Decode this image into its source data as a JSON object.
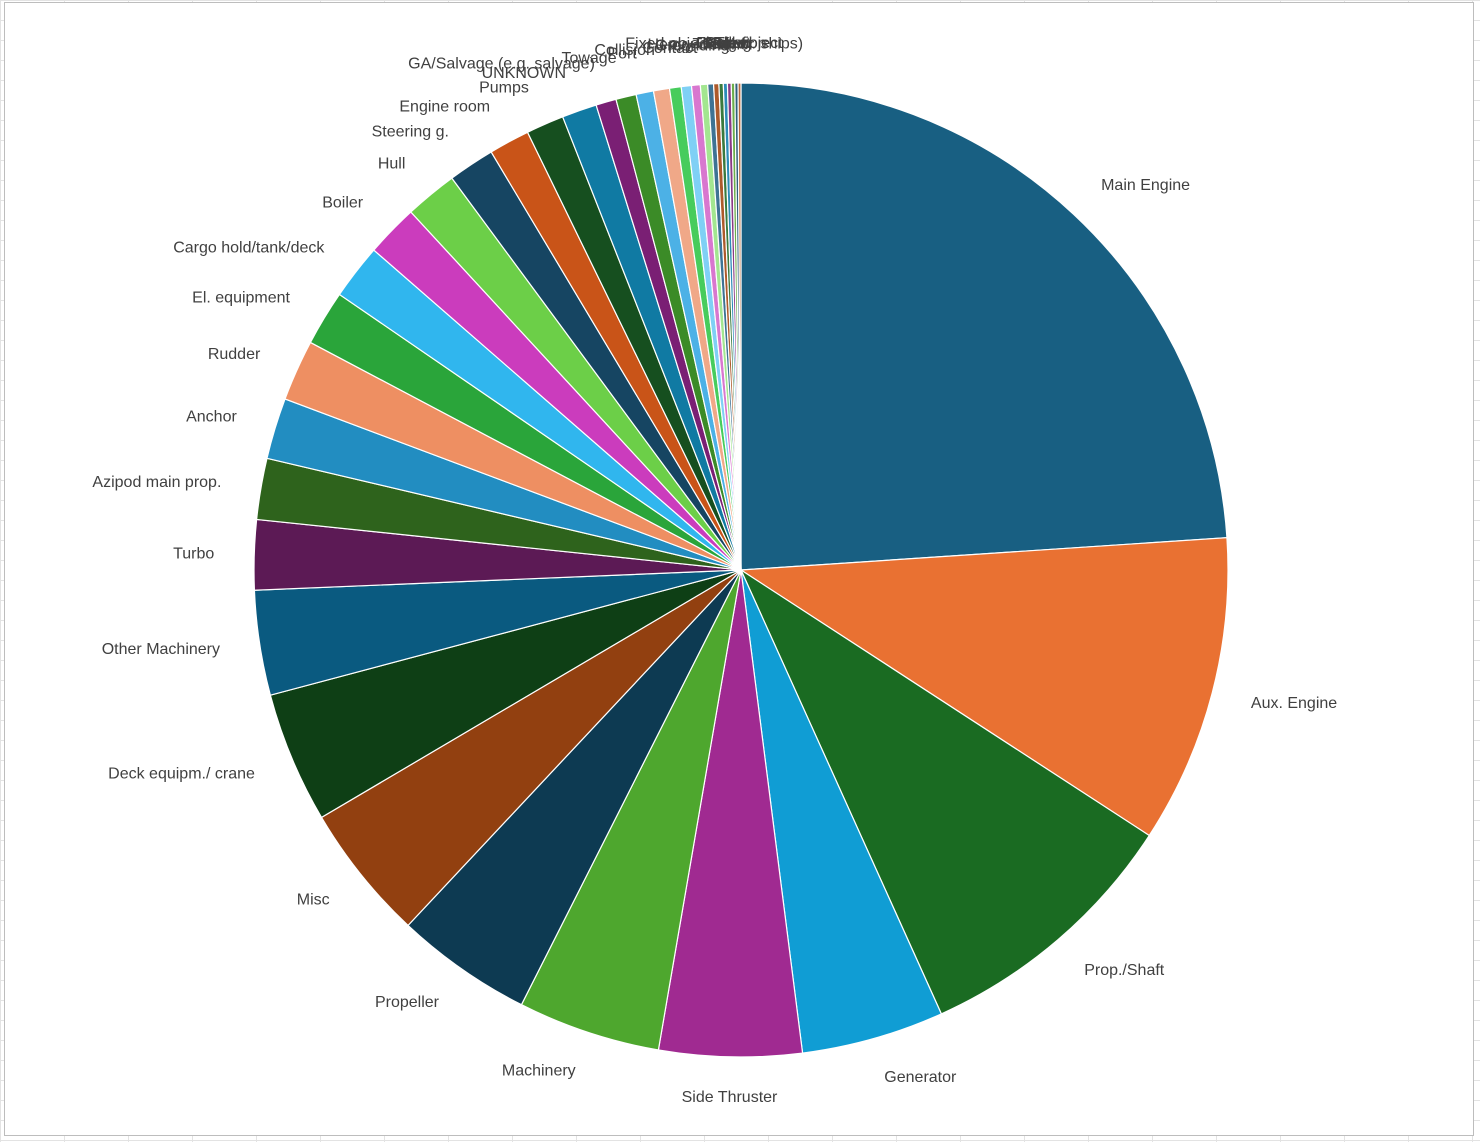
{
  "chart_data": {
    "type": "pie",
    "title": "",
    "legend": "none",
    "slices": [
      {
        "label": "Main Engine",
        "value": 24.8,
        "color": "#185f82"
      },
      {
        "label": "Aux. Engine",
        "value": 10.6,
        "color": "#e97132"
      },
      {
        "label": "Prop./Shaft",
        "value": 9.4,
        "color": "#1a6b22"
      },
      {
        "label": "Generator",
        "value": 4.9,
        "color": "#109dd4"
      },
      {
        "label": "Side Thruster",
        "value": 4.9,
        "color": "#a02a91"
      },
      {
        "label": "Machinery",
        "value": 4.9,
        "color": "#4ea72e"
      },
      {
        "label": "Propeller",
        "value": 4.7,
        "color": "#0d3a52"
      },
      {
        "label": "Misc",
        "value": 4.7,
        "color": "#924010"
      },
      {
        "label": "Deck equipm./ crane",
        "value": 4.5,
        "color": "#0e3f15"
      },
      {
        "label": "Other Machinery",
        "value": 3.6,
        "color": "#0a5a80"
      },
      {
        "label": "Turbo",
        "value": 2.4,
        "color": "#5c1a55"
      },
      {
        "label": "Azipod main prop.",
        "value": 2.1,
        "color": "#2e631c"
      },
      {
        "label": "Anchor",
        "value": 2.1,
        "color": "#228dc1"
      },
      {
        "label": "Rudder",
        "value": 2.1,
        "color": "#ee8f62"
      },
      {
        "label": "El. equipment",
        "value": 1.9,
        "color": "#2aa53a"
      },
      {
        "label": "Cargo hold/tank/deck",
        "value": 1.9,
        "color": "#30b6ee"
      },
      {
        "label": "Boiler",
        "value": 1.8,
        "color": "#cb3cbd"
      },
      {
        "label": "Hull",
        "value": 1.8,
        "color": "#6ccf48"
      },
      {
        "label": "Steering g.",
        "value": 1.6,
        "color": "#164562"
      },
      {
        "label": "Engine room",
        "value": 1.4,
        "color": "#c95418"
      },
      {
        "label": "Pumps",
        "value": 1.3,
        "color": "#164f1f"
      },
      {
        "label": "UNKNOWN",
        "value": 1.2,
        "color": "#107aa3"
      },
      {
        "label": "GA/Salvage (e.g. salvage)",
        "value": 0.7,
        "color": "#7a1f74"
      },
      {
        "label": "Towage",
        "value": 0.7,
        "color": "#3b8b27"
      },
      {
        "label": "Port",
        "value": 0.6,
        "color": "#4cb1e6"
      },
      {
        "label": "Collision",
        "value": 0.55,
        "color": "#f0a888"
      },
      {
        "label": "Contact",
        "value": 0.4,
        "color": "#47cc5c"
      },
      {
        "label": "Fire",
        "value": 0.35,
        "color": "#7fd0f5"
      },
      {
        "label": "Grounding",
        "value": 0.3,
        "color": "#d877cf"
      },
      {
        "label": "Heavy weather",
        "value": 0.25,
        "color": "#a3e690"
      },
      {
        "label": "TPP",
        "value": 0.2,
        "color": "#3e7394"
      },
      {
        "label": "Fixed objects (e.g. ships)",
        "value": 0.18,
        "color": "#ad5a2b"
      },
      {
        "label": "Oil",
        "value": 0.15,
        "color": "#3a7a3e"
      },
      {
        "label": "Cargo",
        "value": 0.14,
        "color": "#2c8cb8"
      },
      {
        "label": "Crew",
        "value": 0.13,
        "color": "#8a3a84"
      },
      {
        "label": "Theft",
        "value": 0.12,
        "color": "#6cae4b"
      },
      {
        "label": "Pollution",
        "value": 0.11,
        "color": "#2f5f7c"
      },
      {
        "label": "Fixed object",
        "value": 0.1,
        "color": "#b86a3e"
      }
    ]
  }
}
